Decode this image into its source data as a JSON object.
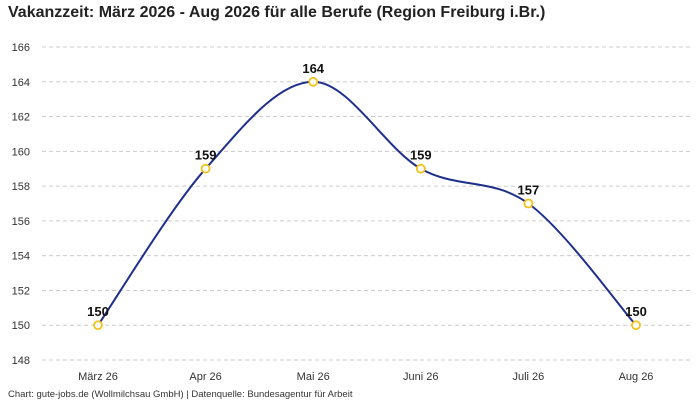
{
  "chart_data": {
    "type": "line",
    "title": "Vakanzzeit: März 2026 - Aug 2026 für alle Berufe (Region Freiburg i.Br.)",
    "categories": [
      "März 26",
      "Apr 26",
      "Mai 26",
      "Juni 26",
      "Juli 26",
      "Aug 26"
    ],
    "series": [
      {
        "values": [
          150,
          159,
          164,
          159,
          157,
          150
        ]
      }
    ],
    "ylim": [
      148,
      166
    ],
    "yticks": [
      148,
      150,
      152,
      154,
      156,
      158,
      160,
      162,
      164,
      166
    ],
    "grid": true,
    "line_color": "#1f2f8c",
    "marker_color": "#f2c21b",
    "source": "Chart: gute-jobs.de (Wollmilchsau GmbH) | Datenquelle: Bundesagentur für Arbeit"
  }
}
